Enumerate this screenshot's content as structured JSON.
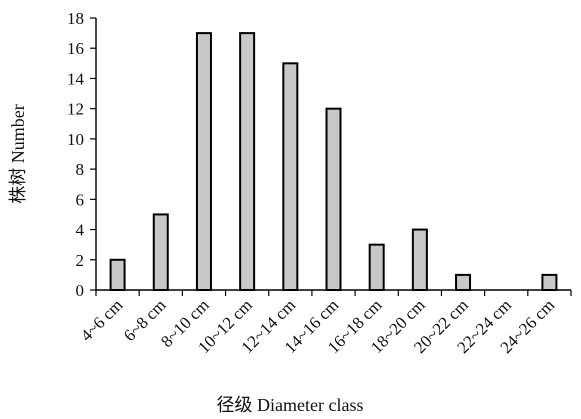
{
  "chart_data": {
    "type": "bar",
    "categories": [
      "4~6 cm",
      "6~8 cm",
      "8~10 cm",
      "10~12 cm",
      "12~14 cm",
      "14~16 cm",
      "16~18 cm",
      "18~20 cm",
      "20~22 cm",
      "22~24 cm",
      "24~26 cm"
    ],
    "values": [
      2,
      5,
      17,
      17,
      15,
      12,
      3,
      4,
      1,
      0,
      1
    ],
    "xlabel": "径级  Diameter class",
    "ylabel": "株树 Number",
    "ylim": [
      0,
      18
    ],
    "yticks": [
      0,
      2,
      4,
      6,
      8,
      10,
      12,
      14,
      16,
      18
    ],
    "grid": false,
    "colors": {
      "bar_fill": "#c8c8c8",
      "bar_stroke": "#000000"
    }
  }
}
